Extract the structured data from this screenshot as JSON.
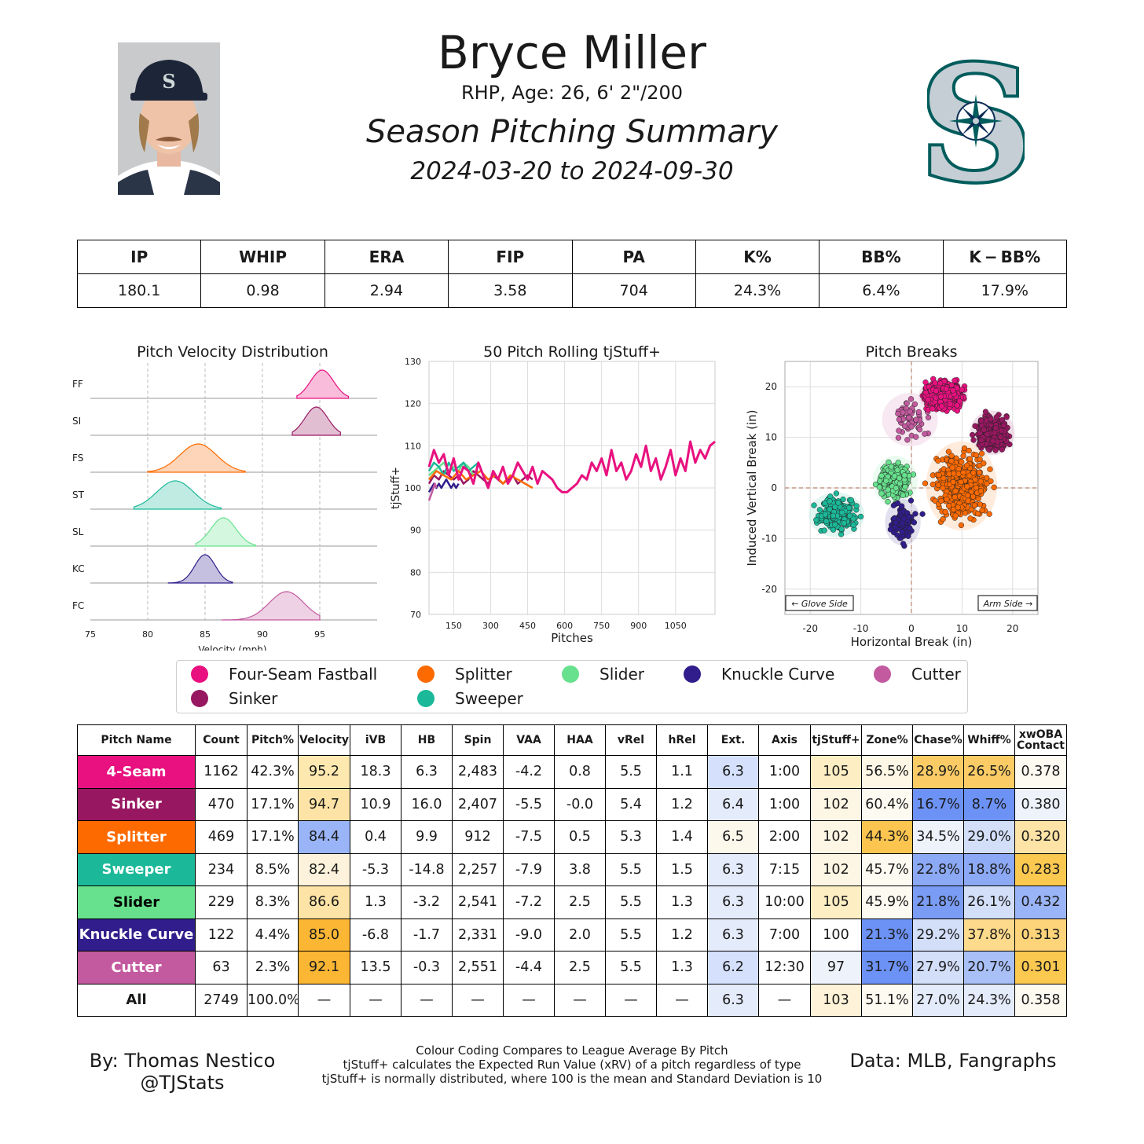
{
  "header": {
    "name": "Bryce Miller",
    "info": "RHP, Age: 26, 6' 2\"/200",
    "title": "Season Pitching Summary",
    "dates": "2024-03-20 to 2024-09-30",
    "team_logo_letter": "S"
  },
  "season_stats": {
    "headers": [
      "IP",
      "WHIP",
      "ERA",
      "FIP",
      "PA",
      "K%",
      "BB%",
      "K − BB%"
    ],
    "values": [
      "180.1",
      "0.98",
      "2.94",
      "3.58",
      "704",
      "24.3%",
      "6.4%",
      "17.9%"
    ]
  },
  "pitch_colors": {
    "FF": "#e8117f",
    "SI": "#981761",
    "FS": "#fd6a00",
    "ST": "#1bb999",
    "SL": "#67e18d",
    "KC": "#311d8b",
    "FC": "#c35a9f"
  },
  "chart_data": [
    {
      "type": "area",
      "title": "Pitch Velocity Distribution",
      "xlabel": "Velocity (mph)",
      "xlim": [
        75,
        100
      ],
      "xticks": [
        75,
        80,
        85,
        90,
        95
      ],
      "rows": [
        {
          "label": "FF",
          "mean": 95.2,
          "sd": 1.0,
          "range": [
            93.0,
            97.5
          ]
        },
        {
          "label": "SI",
          "mean": 94.7,
          "sd": 1.0,
          "range": [
            92.6,
            96.8
          ]
        },
        {
          "label": "FS",
          "mean": 84.4,
          "sd": 1.6,
          "range": [
            80.0,
            88.5
          ]
        },
        {
          "label": "ST",
          "mean": 82.4,
          "sd": 1.6,
          "range": [
            78.8,
            86.4
          ]
        },
        {
          "label": "SL",
          "mean": 86.6,
          "sd": 1.1,
          "range": [
            84.2,
            89.4
          ]
        },
        {
          "label": "KC",
          "mean": 85.0,
          "sd": 0.9,
          "range": [
            81.8,
            87.4
          ]
        },
        {
          "label": "FC",
          "mean": 92.1,
          "sd": 1.5,
          "range": [
            86.4,
            95.0
          ]
        }
      ]
    },
    {
      "type": "line",
      "title": "50 Pitch Rolling tjStuff+",
      "xlabel": "Pitches",
      "ylabel": "tjStuff+",
      "xlim": [
        50,
        1210
      ],
      "ylim": [
        70,
        130
      ],
      "xticks": [
        150,
        300,
        450,
        600,
        750,
        900,
        1050
      ],
      "yticks": [
        70,
        80,
        90,
        100,
        110,
        120,
        130
      ],
      "series": [
        {
          "key": "FF",
          "x": [
            50,
            70,
            90,
            110,
            130,
            150,
            170,
            190,
            210,
            230,
            250,
            270,
            290,
            310,
            330,
            350,
            370,
            390,
            410,
            430,
            450,
            470,
            490,
            510,
            530,
            550,
            570,
            590,
            610,
            630,
            650,
            670,
            690,
            710,
            730,
            750,
            770,
            790,
            810,
            830,
            850,
            870,
            890,
            910,
            930,
            950,
            970,
            990,
            1010,
            1030,
            1050,
            1070,
            1090,
            1110,
            1130,
            1150,
            1170,
            1190,
            1210
          ],
          "y": [
            105,
            109,
            106,
            108,
            103,
            107,
            102,
            105,
            104,
            101,
            106,
            103,
            100,
            104,
            102,
            105,
            101,
            103,
            106,
            104,
            102,
            105,
            101,
            104,
            103,
            102,
            100,
            99,
            99,
            100,
            101,
            103,
            102,
            106,
            104,
            107,
            103,
            109,
            104,
            106,
            102,
            104,
            108,
            105,
            110,
            104,
            107,
            102,
            105,
            109,
            103,
            107,
            104,
            111,
            106,
            109,
            107,
            110,
            111
          ]
        },
        {
          "key": "SI",
          "x": [
            50,
            70,
            90,
            110,
            130,
            150,
            170,
            190,
            210,
            230,
            250,
            270,
            290,
            310,
            330,
            350,
            370,
            390,
            410,
            430,
            450,
            470
          ],
          "y": [
            101,
            103,
            102,
            104,
            103,
            102,
            103,
            101,
            102,
            104,
            103,
            102,
            101,
            103,
            102,
            101,
            102,
            103,
            101,
            102,
            103,
            102
          ]
        },
        {
          "key": "FS",
          "x": [
            50,
            80,
            110,
            140,
            170,
            200,
            230,
            260,
            290,
            320,
            350,
            380,
            410,
            440,
            470
          ],
          "y": [
            102,
            104,
            103,
            102,
            104,
            102,
            103,
            104,
            102,
            103,
            101,
            103,
            102,
            101,
            100
          ]
        },
        {
          "key": "ST",
          "x": [
            50,
            70,
            90,
            110,
            130,
            150,
            170,
            190,
            210,
            230,
            250
          ],
          "y": [
            104,
            106,
            105,
            103,
            106,
            104,
            105,
            106,
            104,
            105,
            106
          ]
        },
        {
          "key": "SL",
          "x": [
            50,
            70,
            90,
            110,
            130,
            150,
            170,
            190,
            210,
            230,
            250
          ],
          "y": [
            103,
            104,
            105,
            106,
            104,
            105,
            104,
            106,
            105,
            103,
            104
          ]
        },
        {
          "key": "KC",
          "x": [
            50,
            60,
            70,
            80,
            90,
            100,
            110,
            120,
            130,
            140,
            150,
            160,
            170
          ],
          "y": [
            99,
            100,
            101,
            100,
            101,
            100,
            101,
            102,
            101,
            100,
            101,
            100,
            101
          ]
        },
        {
          "key": "FC",
          "x": [
            50,
            56,
            62,
            68,
            74,
            80
          ],
          "y": [
            97,
            98,
            99,
            100,
            101,
            100
          ]
        }
      ]
    },
    {
      "type": "scatter",
      "title": "Pitch Breaks",
      "xlabel": "Horizontal Break (in)",
      "ylabel": "Induced Vertical Break (in)",
      "xlim": [
        -25,
        25
      ],
      "ylim": [
        -25,
        25
      ],
      "xticks": [
        -20,
        -10,
        0,
        10,
        20
      ],
      "yticks": [
        -20,
        -10,
        0,
        10,
        20
      ],
      "annotations": [
        "← Glove Side",
        "Arm Side →"
      ],
      "clusters": [
        {
          "key": "SI",
          "n": 470,
          "mx": 16.0,
          "my": 10.9,
          "sx": 2.0,
          "sy": 2.0
        },
        {
          "key": "FC",
          "n": 63,
          "mx": -0.3,
          "my": 13.5,
          "sx": 2.5,
          "sy": 2.4
        },
        {
          "key": "FS",
          "n": 469,
          "mx": 9.9,
          "my": 0.4,
          "sx": 3.2,
          "sy": 4.0
        },
        {
          "key": "ST",
          "n": 234,
          "mx": -14.8,
          "my": -5.3,
          "sx": 2.5,
          "sy": 2.0
        },
        {
          "key": "SL",
          "n": 229,
          "mx": -3.2,
          "my": 1.3,
          "sx": 2.0,
          "sy": 2.3
        },
        {
          "key": "KC",
          "n": 122,
          "mx": -1.7,
          "my": -6.8,
          "sx": 1.6,
          "sy": 2.1
        },
        {
          "key": "FF",
          "n": 1162,
          "mx": 6.3,
          "my": 18.3,
          "sx": 2.2,
          "sy": 1.5
        }
      ]
    }
  ],
  "legend": [
    {
      "key": "FF",
      "label": "Four-Seam Fastball"
    },
    {
      "key": "FS",
      "label": "Splitter"
    },
    {
      "key": "SL",
      "label": "Slider"
    },
    {
      "key": "KC",
      "label": "Knuckle Curve"
    },
    {
      "key": "FC",
      "label": "Cutter"
    },
    {
      "key": "SI",
      "label": "Sinker"
    },
    {
      "key": "ST",
      "label": "Sweeper"
    }
  ],
  "pitch_table": {
    "headers": [
      "Pitch Name",
      "Count",
      "Pitch%",
      "Velocity",
      "iVB",
      "HB",
      "Spin",
      "VAA",
      "HAA",
      "vRel",
      "hRel",
      "Ext.",
      "Axis",
      "tjStuff+",
      "Zone%",
      "Chase%",
      "Whiff%",
      "xwOBA Contact"
    ],
    "rows": [
      {
        "key": "FF",
        "name": "4-Seam",
        "cells": [
          "1162",
          "42.3%",
          "95.2",
          "18.3",
          "6.3",
          "2,483",
          "-4.2",
          "0.8",
          "5.5",
          "1.1",
          "6.3",
          "1:00",
          "105",
          "56.5%",
          "28.9%",
          "26.5%",
          "0.378"
        ],
        "shades": {
          "3": "#fde8b0",
          "11": "#d4e0fc",
          "13": "#fdeec4",
          "14": "#fef7e6",
          "15": "#fbcc66",
          "16": "#fbcc66",
          "17": "#fdfaf2"
        }
      },
      {
        "key": "SI",
        "name": "Sinker",
        "cells": [
          "470",
          "17.1%",
          "94.7",
          "10.9",
          "16.0",
          "2,407",
          "-5.5",
          "-0.0",
          "5.4",
          "1.2",
          "6.4",
          "1:00",
          "102",
          "60.4%",
          "16.7%",
          "8.7%",
          "0.380"
        ],
        "shades": {
          "3": "#fde3a5",
          "11": "#e4ebfa",
          "13": "#fef6e4",
          "14": "#fdfaf2",
          "15": "#6d92f5",
          "16": "#6d92f5",
          "17": "#eef2fb"
        }
      },
      {
        "key": "FS",
        "name": "Splitter",
        "cells": [
          "469",
          "17.1%",
          "84.4",
          "0.4",
          "9.9",
          "912",
          "-7.5",
          "0.5",
          "5.3",
          "1.4",
          "6.5",
          "2:00",
          "102",
          "44.3%",
          "34.5%",
          "29.0%",
          "0.320"
        ],
        "shades": {
          "3": "#9ab5f7",
          "11": "#fdf8ec",
          "13": "#fef6e4",
          "14": "#fbc54f",
          "15": "#eef2fb",
          "16": "#d3dff9",
          "17": "#fde3a5"
        }
      },
      {
        "key": "ST",
        "name": "Sweeper",
        "cells": [
          "234",
          "8.5%",
          "82.4",
          "-5.3",
          "-14.8",
          "2,257",
          "-7.9",
          "3.8",
          "5.5",
          "1.5",
          "6.3",
          "7:15",
          "102",
          "45.7%",
          "22.8%",
          "18.8%",
          "0.283"
        ],
        "shades": {
          "3": "#fdf3dc",
          "11": "#e4ebfa",
          "13": "#fef6e4",
          "14": "#fdfaf2",
          "15": "#8ca9f5",
          "16": "#8ca9f5",
          "17": "#fbc850"
        }
      },
      {
        "key": "SL",
        "name": "Slider",
        "cells": [
          "229",
          "8.3%",
          "86.6",
          "1.3",
          "-3.2",
          "2,541",
          "-7.2",
          "2.5",
          "5.5",
          "1.3",
          "6.3",
          "10:00",
          "105",
          "45.9%",
          "21.8%",
          "26.1%",
          "0.432"
        ],
        "shades": {
          "3": "#fde3a5",
          "11": "#e4ebfa",
          "13": "#fdeec4",
          "14": "#fdfaf2",
          "15": "#7a9cf4",
          "16": "#d3dff9",
          "17": "#9ab5f7"
        }
      },
      {
        "key": "KC",
        "name": "Knuckle Curve",
        "cells": [
          "122",
          "4.4%",
          "85.0",
          "-6.8",
          "-1.7",
          "2,331",
          "-9.0",
          "2.0",
          "5.5",
          "1.2",
          "6.3",
          "7:00",
          "100",
          "21.3%",
          "29.2%",
          "37.8%",
          "0.313"
        ],
        "shades": {
          "3": "#fbb634",
          "11": "#e4ebfa",
          "13": "",
          "14": "#6d92f5",
          "15": "#d3dff9",
          "16": "#fdda8c",
          "17": "#fdd47a"
        }
      },
      {
        "key": "FC",
        "name": "Cutter",
        "cells": [
          "63",
          "2.3%",
          "92.1",
          "13.5",
          "-0.3",
          "2,551",
          "-4.4",
          "2.5",
          "5.5",
          "1.3",
          "6.2",
          "12:30",
          "97",
          "31.7%",
          "27.9%",
          "20.7%",
          "0.301"
        ],
        "shades": {
          "3": "#fbb634",
          "11": "#d4e0fc",
          "13": "#eef2fb",
          "14": "#6d92f5",
          "15": "#d3dff9",
          "16": "#a9c0f7",
          "17": "#fbc850"
        }
      },
      {
        "key": "",
        "name": "All",
        "cells": [
          "2749",
          "100.0%",
          "—",
          "—",
          "—",
          "—",
          "—",
          "—",
          "—",
          "—",
          "6.3",
          "—",
          "103",
          "51.1%",
          "27.0%",
          "24.3%",
          "0.358"
        ],
        "shades": {
          "11": "#e4ebfa",
          "13": "#fef3d8",
          "14": "#fdfaf2",
          "15": "#e4ebfa",
          "16": "#e4ebfa",
          "17": "#fdfaf2"
        }
      }
    ]
  },
  "footer": {
    "credit_name": "By: Thomas Nestico",
    "credit_handle": "@TJStats",
    "note1": "Colour Coding Compares to League Average By Pitch",
    "note2": "tjStuff+ calculates the Expected Run Value (xRV) of a pitch regardless of type",
    "note3": "tjStuff+ is normally distributed, where 100 is the mean and Standard Deviation is 10",
    "data_source": "Data: MLB, Fangraphs"
  }
}
